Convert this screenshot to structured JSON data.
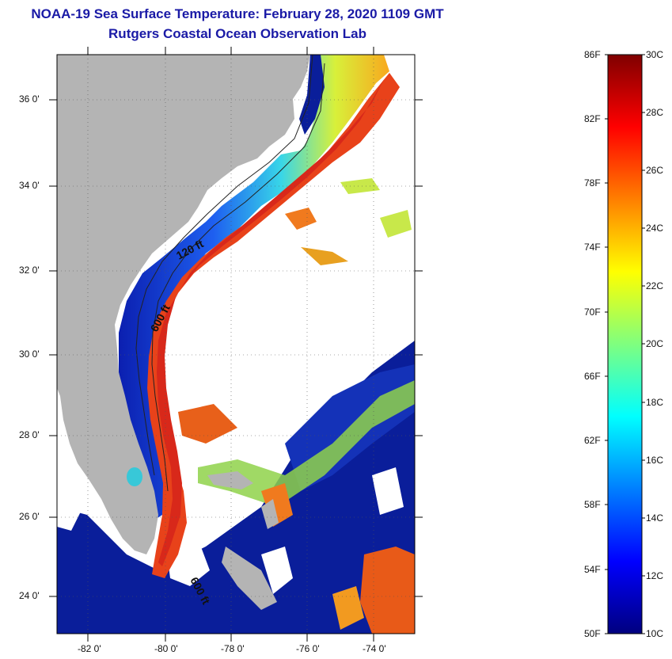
{
  "title": {
    "line1": "NOAA-19 Sea Surface Temperature:  February 28, 2020 1109 GMT",
    "line2": "Rutgers Coastal Ocean Observation Lab"
  },
  "map": {
    "lat_range": [
      23.0,
      37.0
    ],
    "lon_range": [
      -83.0,
      -74.0
    ],
    "lat_labels": [
      "36 0'",
      "34 0'",
      "32 0'",
      "30 0'",
      "28 0'",
      "26 0'",
      "24 0'"
    ],
    "lon_labels": [
      "-82 0'",
      "-80 0'",
      "-78 0'",
      "-76 0'",
      "-74 0'"
    ],
    "contour_labels": [
      "120 ft",
      "600 ft",
      "600 ft"
    ],
    "colors": {
      "land": "#b4b4b4",
      "cloud": "#ffffff",
      "cold": "#0a1e8c",
      "warm": "#e8421a"
    }
  },
  "colorbar": {
    "fahrenheit": [
      "86F",
      "82F",
      "78F",
      "74F",
      "70F",
      "66F",
      "62F",
      "58F",
      "54F",
      "50F"
    ],
    "celsius": [
      "30C",
      "28C",
      "26C",
      "24C",
      "22C",
      "20C",
      "18C",
      "16C",
      "14C",
      "12C",
      "10C"
    ],
    "colors": [
      "#00007f",
      "#0000ff",
      "#007fff",
      "#00ffff",
      "#7fff7f",
      "#ffff00",
      "#ff7f00",
      "#ff0000",
      "#7f0000"
    ]
  }
}
